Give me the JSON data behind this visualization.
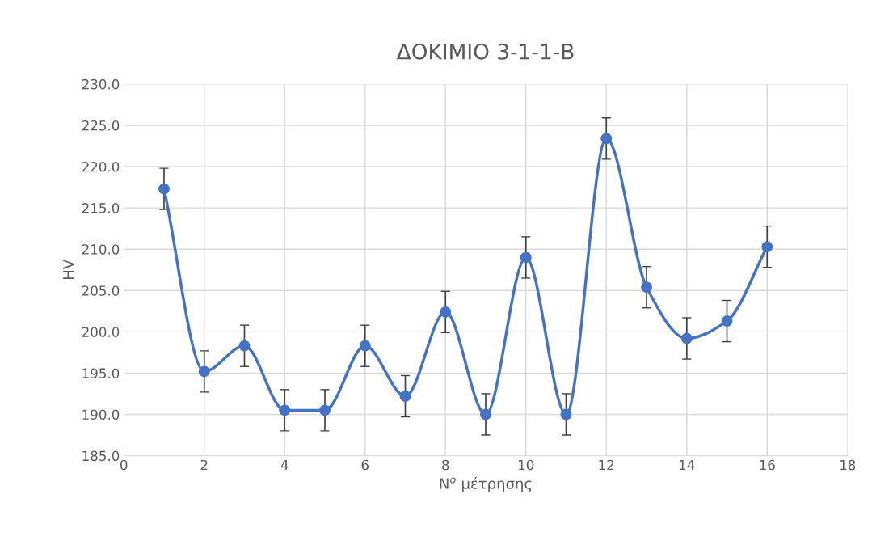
{
  "chart_data": {
    "type": "line",
    "title": "ΔΟΚΙΜΙΟ 3-1-1-Β",
    "xlabel": "N$^{o}$ μέτρησης",
    "ylabel": "HV",
    "x": [
      1,
      2,
      3,
      4,
      5,
      6,
      7,
      8,
      9,
      10,
      11,
      12,
      13,
      14,
      15,
      16
    ],
    "series": [
      {
        "color": "#4472c4",
        "values": [
          217.3,
          195.2,
          198.3,
          190.5,
          190.5,
          198.3,
          192.2,
          202.4,
          190.0,
          209.0,
          190.0,
          223.4,
          205.4,
          199.2,
          201.3,
          210.3
        ],
        "errors": [
          2.5,
          2.5,
          2.5,
          2.5,
          2.5,
          2.5,
          2.5,
          2.5,
          2.5,
          2.5,
          2.5,
          2.5,
          2.5,
          2.5,
          2.5,
          2.5
        ]
      }
    ],
    "xlim": [
      0,
      18
    ],
    "xticks": [
      0,
      2,
      4,
      6,
      8,
      10,
      12,
      14,
      16,
      18
    ],
    "ylim": [
      185,
      230
    ],
    "yticks": [
      {
        "value": 185,
        "label": "185.0"
      },
      {
        "value": 190,
        "label": "190.0"
      },
      {
        "value": 195,
        "label": "195.0"
      },
      {
        "value": 200,
        "label": "200.0"
      },
      {
        "value": 205,
        "label": "205.0"
      },
      {
        "value": 210,
        "label": "210.0"
      },
      {
        "value": 215,
        "label": "215.0"
      },
      {
        "value": 220,
        "label": "220.0"
      },
      {
        "value": 225,
        "label": "225.0"
      },
      {
        "value": 230,
        "label": "230.0"
      }
    ],
    "grid": true,
    "marker": "circle",
    "line_style": "solid"
  }
}
